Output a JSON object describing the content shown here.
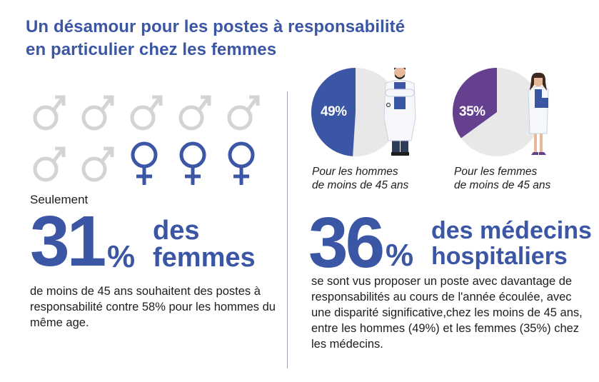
{
  "title": {
    "line1": "Un désamour pour les postes à responsabilité",
    "line2": "en particulier chez les femmes"
  },
  "colors": {
    "accent": "#3a56a5",
    "purple": "#65408f",
    "grey_icon": "#d4d4d4",
    "pie_bg": "#e8e8e8"
  },
  "gender_icons": {
    "total": 10,
    "highlighted_female": 3,
    "grey_symbol": "male-symbol-icon",
    "highlight_symbol": "female-symbol-icon"
  },
  "left_stat": {
    "prefix": "Seulement",
    "number": "31",
    "percent_sign": "%",
    "word1": "des",
    "word2": "femmes",
    "description": "de moins de 45 ans souhaitent des postes à responsabilité contre 58% pour les hommes du même age."
  },
  "pies": [
    {
      "label": "49%",
      "value": 49,
      "color": "#3a56a5",
      "caption_line1": "Pour les hommes",
      "caption_line2": "de moins de 45 ans",
      "figure": "male-doctor-icon"
    },
    {
      "label": "35%",
      "value": 35,
      "color": "#65408f",
      "caption_line1": "Pour les femmes",
      "caption_line2": "de moins de 45 ans",
      "figure": "female-doctor-icon"
    }
  ],
  "right_stat": {
    "number": "36",
    "percent_sign": "%",
    "word1": "des médecins",
    "word2": "hospitaliers",
    "description": "se sont vus  proposer un poste avec davantage de responsabilités au cours de l'année écoulée, avec une disparité significative,chez les moins de 45 ans, entre les hommes (49%) et les femmes (35%) chez les médecins."
  }
}
